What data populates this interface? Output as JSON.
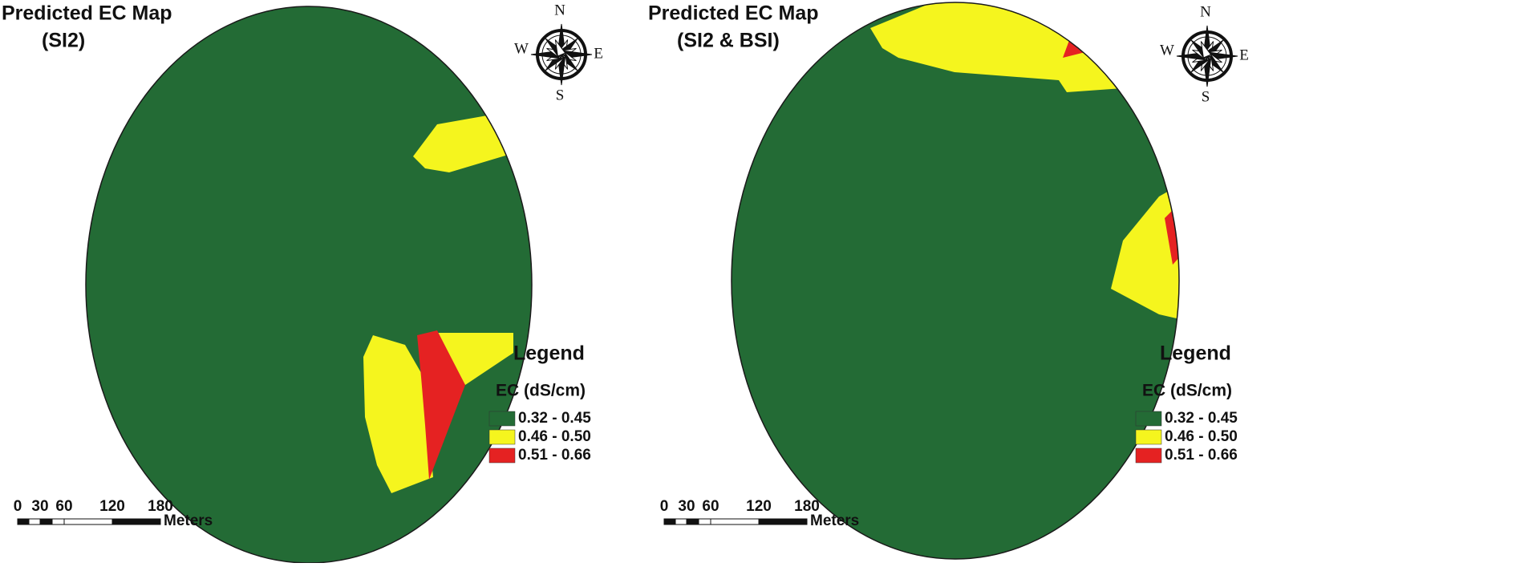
{
  "panels": [
    {
      "title": "Predicted EC Map",
      "subtitle": "(SI2)",
      "compass": {
        "n": "N",
        "e": "E",
        "s": "S",
        "w": "W"
      },
      "legend": {
        "title": "Legend",
        "subtitle": "EC (dS/cm)",
        "items": [
          {
            "label": "0.32 - 0.45",
            "color": "#236b35"
          },
          {
            "label": "0.46 - 0.50",
            "color": "#f5f51e"
          },
          {
            "label": "0.51 - 0.66",
            "color": "#e52222"
          }
        ]
      },
      "scale": {
        "labels": [
          "0",
          "30",
          "60",
          "120",
          "180"
        ],
        "unit": "Meters"
      }
    },
    {
      "title": "Predicted EC Map",
      "subtitle": "(SI2 & BSI)",
      "compass": {
        "n": "N",
        "e": "E",
        "s": "S",
        "w": "W"
      },
      "legend": {
        "title": "Legend",
        "subtitle": "EC (dS/cm)",
        "items": [
          {
            "label": "0.32 - 0.45",
            "color": "#236b35"
          },
          {
            "label": "0.46 - 0.50",
            "color": "#f5f51e"
          },
          {
            "label": "0.51 - 0.66",
            "color": "#e52222"
          }
        ]
      },
      "scale": {
        "labels": [
          "0",
          "30",
          "60",
          "120",
          "180"
        ],
        "unit": "Meters"
      }
    }
  ]
}
